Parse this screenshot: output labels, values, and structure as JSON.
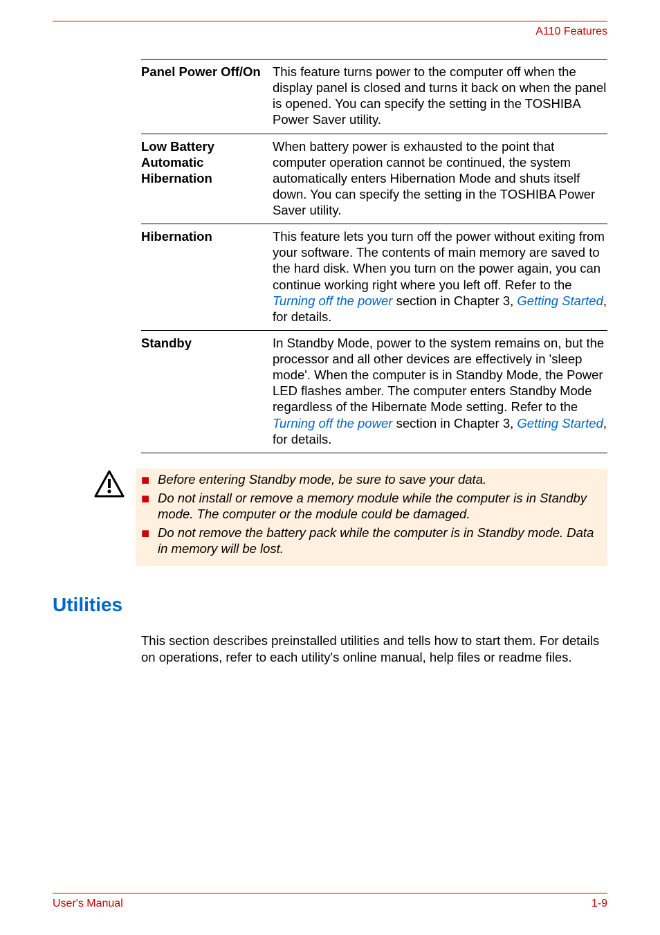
{
  "colors": {
    "accent": "#cc0000",
    "link": "#0066cc",
    "warn_bg": "#fff0e0",
    "text": "#000000",
    "page_bg": "#ffffff"
  },
  "header": {
    "right": "A110 Features"
  },
  "definitions": [
    {
      "term": "Panel Power Off/On",
      "desc_plain": "This feature turns power to the computer off when the display panel is closed and turns it back on when the panel is opened. You can specify the setting in the TOSHIBA Power Saver utility."
    },
    {
      "term": "Low Battery Automatic Hibernation",
      "desc_plain": "When battery power is exhausted to the point that computer operation cannot be continued, the system automatically enters Hibernation Mode and shuts itself down. You can specify the setting in the TOSHIBA Power Saver utility."
    },
    {
      "term": "Hibernation",
      "desc_parts": [
        {
          "t": "text",
          "v": "This feature lets you turn off the power without exiting from your software. The contents of main memory are saved to the hard disk. When you turn on the power again, you can continue working right where you left off. Refer to the "
        },
        {
          "t": "link",
          "v": "Turning off the power"
        },
        {
          "t": "text",
          "v": " section in Chapter 3, "
        },
        {
          "t": "link",
          "v": "Getting Started"
        },
        {
          "t": "text",
          "v": ", for details."
        }
      ]
    },
    {
      "term": "Standby",
      "desc_parts": [
        {
          "t": "text",
          "v": "In Standby Mode, power to the system remains on, but the processor and all other devices are effectively in 'sleep mode'. When the computer is in Standby Mode, the Power LED flashes amber. The computer enters Standby Mode regardless of the Hibernate Mode setting. Refer to the "
        },
        {
          "t": "link",
          "v": "Turning off the power"
        },
        {
          "t": "text",
          "v": " section in Chapter 3, "
        },
        {
          "t": "link",
          "v": "Getting Started"
        },
        {
          "t": "text",
          "v": ", for details."
        }
      ]
    }
  ],
  "warnings": [
    "Before entering Standby mode, be sure to save your data.",
    "Do not install or remove a memory module while the computer is in Standby mode. The computer or the module could be damaged.",
    "Do not remove the battery pack while the computer is in Standby mode. Data in memory will be lost."
  ],
  "section": {
    "heading": "Utilities",
    "paragraph": "This section describes preinstalled utilities and tells how to start them. For details on operations, refer to each utility's online manual, help files or readme files."
  },
  "footer": {
    "left": "User's Manual",
    "right": "1-9"
  }
}
